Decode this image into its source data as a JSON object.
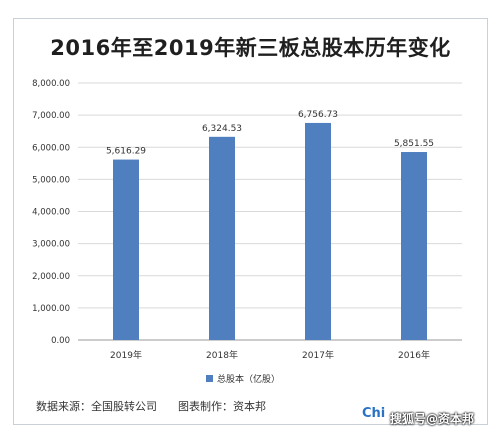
{
  "page_title": "2016年至2019年新三板总股本历年变化",
  "source_text": "数据来源：全国股转公司",
  "maker_text": "图表制作：资本邦",
  "logo_text": "Chi",
  "sohu_text": "搜狐号@资本邦",
  "colors": {
    "bar": "#4f7fbf",
    "grid": "#d9d9d9",
    "axis_text": "#333333"
  },
  "chart_data": {
    "type": "bar",
    "title": "2016年至2019年新三板总股本历年变化",
    "categories": [
      "2019年",
      "2018年",
      "2017年",
      "2016年"
    ],
    "series": [
      {
        "name": "总股本（亿股）",
        "values": [
          5616.29,
          6324.53,
          6756.73,
          5851.55
        ]
      }
    ],
    "value_labels": [
      "5,616.29",
      "6,324.53",
      "6,756.73",
      "5,851.55"
    ],
    "y_ticks": [
      "0.00",
      "1,000.00",
      "2,000.00",
      "3,000.00",
      "4,000.00",
      "5,000.00",
      "6,000.00",
      "7,000.00",
      "8,000.00"
    ],
    "ylim": [
      0,
      8000
    ],
    "grid": true,
    "legend_position": "bottom"
  }
}
